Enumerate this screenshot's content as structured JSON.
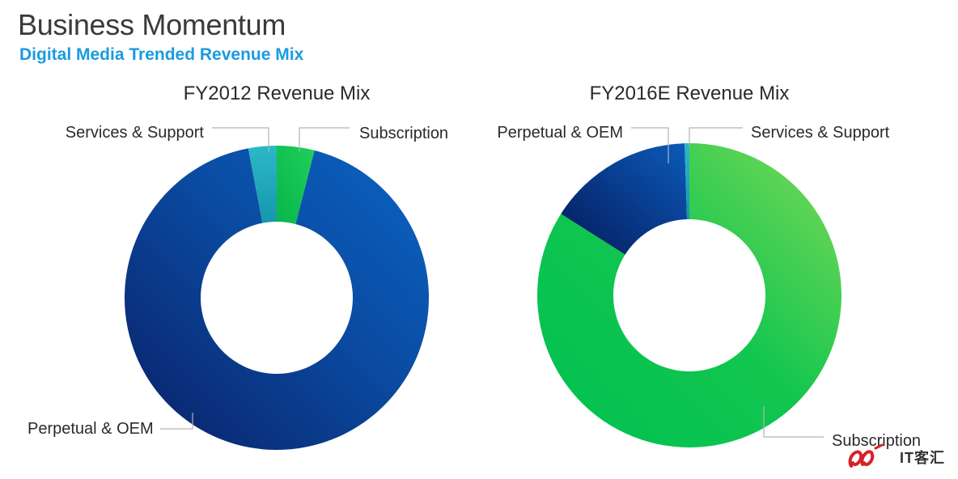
{
  "header": {
    "title": "Business Momentum",
    "subtitle": "Digital Media Trended Revenue Mix"
  },
  "chart_data": [
    {
      "type": "pie",
      "title": "FY2012 Revenue Mix",
      "labels": [
        "Subscription",
        "Perpetual & OEM",
        "Services & Support"
      ],
      "values": [
        4,
        93,
        3
      ],
      "colors": [
        "#1ec24e",
        "#0b4fa3",
        "#21a9b9"
      ]
    },
    {
      "type": "pie",
      "title": "FY2016E Revenue Mix",
      "labels": [
        "Subscription",
        "Perpetual & OEM",
        "Services & Support"
      ],
      "values": [
        84,
        15.5,
        0.5
      ],
      "colors": [
        "#33cc55",
        "#0b4fa3",
        "#21a9b9"
      ]
    }
  ],
  "watermark": {
    "text": "IT客汇"
  }
}
